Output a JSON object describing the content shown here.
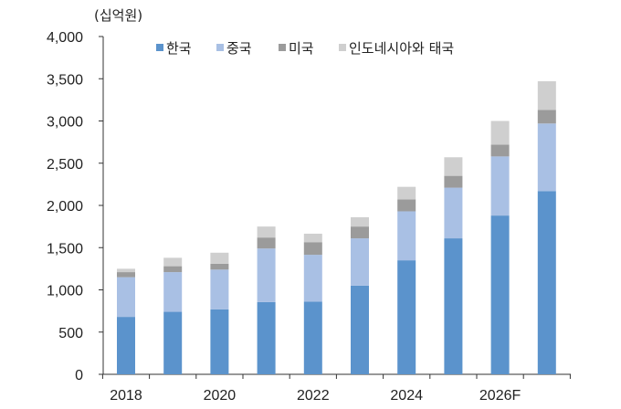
{
  "chart_data": {
    "type": "bar",
    "stacked": true,
    "unit_label": "(십억원)",
    "years": [
      "2018",
      "2019",
      "2020",
      "2021",
      "2022",
      "2023",
      "2024",
      "2025",
      "2026F",
      "2027"
    ],
    "x_tick_labels": [
      "2018",
      "",
      "2020",
      "",
      "2022",
      "",
      "2024",
      "",
      "2026F",
      ""
    ],
    "ylim": [
      0,
      4000
    ],
    "y_ticks": [
      "0",
      "500",
      "1,000",
      "1,500",
      "2,000",
      "2,500",
      "3,000",
      "3,500",
      "4,000"
    ],
    "grid": false,
    "legend_position": "top",
    "series": [
      {
        "name": "한국",
        "color": "#5b93cc",
        "values": [
          680,
          740,
          770,
          855,
          860,
          1050,
          1350,
          1610,
          1880,
          2170
        ]
      },
      {
        "name": "중국",
        "color": "#a9c0e4",
        "values": [
          470,
          470,
          470,
          635,
          555,
          560,
          580,
          600,
          700,
          800
        ]
      },
      {
        "name": "미국",
        "color": "#9b9b9b",
        "values": [
          60,
          70,
          70,
          130,
          150,
          140,
          140,
          140,
          140,
          160
        ]
      },
      {
        "name": "인도네시아와 태국",
        "color": "#cfcfcf",
        "values": [
          40,
          100,
          130,
          130,
          100,
          110,
          150,
          220,
          280,
          340
        ]
      }
    ]
  }
}
